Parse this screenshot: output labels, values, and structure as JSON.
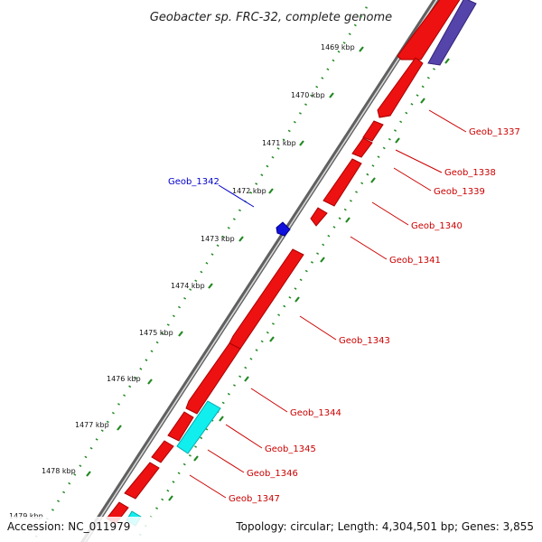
{
  "title": "Geobacter sp. FRC-32, complete genome",
  "accession_text": "Accession: NC_011979",
  "topology_text": "Topology: circular; Length: 4,304,501 bp; Genes: 3,855",
  "kbp_labels": [
    "1469 kbp",
    "1470 kbp",
    "1471 kbp",
    "1472 kbp",
    "1473 kbp",
    "1474 kbp",
    "1475 kbp",
    "1476 kbp",
    "1477 kbp",
    "1478 kbp",
    "1479 kbp"
  ],
  "gene_labels": {
    "geob_1337": "Geob_1337",
    "geob_1338": "Geob_1338",
    "geob_1339": "Geob_1339",
    "geob_1340": "Geob_1340",
    "geob_1341": "Geob_1341",
    "geob_1342": "Geob_1342",
    "geob_1343": "Geob_1343",
    "geob_1344": "Geob_1344",
    "geob_1345": "Geob_1345",
    "geob_1346": "Geob_1346",
    "geob_1347": "Geob_1347"
  },
  "colors": {
    "gene_red": "#ee1111",
    "gene_red_light": "#ff5555",
    "gene_red_dark": "#aa0000",
    "gene_blue": "#1111dd",
    "gene_cyan": "#11eeee",
    "gene_purple": "#5544aa",
    "label_red": "#cc0000",
    "label_blue": "#0000cc",
    "tick_green": "#228822",
    "backbone": "#999999"
  }
}
